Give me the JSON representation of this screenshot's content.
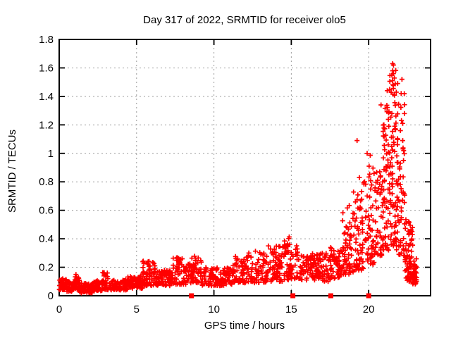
{
  "chart_data": {
    "type": "scatter",
    "title": "Day 317 of 2022, SRMTID for receiver olo5",
    "xlabel": "GPS time / hours",
    "ylabel": "SRMTID / TECUs",
    "xlim": [
      0,
      24
    ],
    "ylim": [
      0,
      1.8
    ],
    "xticks": [
      0,
      5,
      10,
      15,
      20
    ],
    "xtick_labels": [
      "0",
      "5",
      "10",
      "15",
      "20"
    ],
    "yticks": [
      0,
      0.2,
      0.4,
      0.6,
      0.8,
      1,
      1.2,
      1.4,
      1.6,
      1.8
    ],
    "ytick_labels": [
      "0",
      "0.2",
      "0.4",
      "0.6",
      "0.8",
      "1",
      "1.2",
      "1.4",
      "1.6",
      "1.8"
    ],
    "grid": {
      "shown": true,
      "style": "dashed",
      "color": "#9a9a9a"
    },
    "legend": "none",
    "marker": "plus",
    "marker_color": "#ff0000",
    "border_color": "#000000",
    "background_color": "#ffffff",
    "band_format": [
      "x_start",
      "x_end",
      "y_min",
      "y_max",
      "n_points",
      "low_bias_exponent"
    ],
    "density_bands": [
      [
        0.0,
        0.5,
        0.04,
        0.12,
        45,
        1.2
      ],
      [
        0.5,
        1.0,
        0.03,
        0.1,
        45,
        1.2
      ],
      [
        1.0,
        1.3,
        0.04,
        0.15,
        30,
        1.3
      ],
      [
        1.3,
        2.2,
        0.02,
        0.09,
        70,
        1.2
      ],
      [
        2.2,
        2.8,
        0.03,
        0.11,
        45,
        1.2
      ],
      [
        2.8,
        3.2,
        0.04,
        0.18,
        35,
        1.4
      ],
      [
        3.2,
        4.4,
        0.04,
        0.11,
        80,
        1.2
      ],
      [
        4.4,
        5.4,
        0.05,
        0.14,
        70,
        1.2
      ],
      [
        5.4,
        6.2,
        0.07,
        0.25,
        60,
        1.5
      ],
      [
        6.2,
        7.2,
        0.07,
        0.18,
        65,
        1.2
      ],
      [
        7.2,
        8.2,
        0.08,
        0.27,
        65,
        1.4
      ],
      [
        8.2,
        9.2,
        0.09,
        0.28,
        65,
        1.3
      ],
      [
        9.2,
        10.2,
        0.07,
        0.2,
        60,
        1.2
      ],
      [
        10.2,
        11.2,
        0.07,
        0.2,
        65,
        1.2
      ],
      [
        11.2,
        12.2,
        0.09,
        0.28,
        65,
        1.3
      ],
      [
        12.2,
        13.5,
        0.09,
        0.32,
        75,
        1.4
      ],
      [
        13.5,
        14.5,
        0.1,
        0.35,
        65,
        1.4
      ],
      [
        14.5,
        15.6,
        0.11,
        0.42,
        70,
        1.5
      ],
      [
        15.6,
        16.6,
        0.11,
        0.3,
        65,
        1.3
      ],
      [
        16.6,
        17.5,
        0.1,
        0.3,
        60,
        1.3
      ],
      [
        17.5,
        18.3,
        0.12,
        0.36,
        55,
        1.3
      ],
      [
        18.3,
        19.0,
        0.15,
        0.66,
        60,
        1.6
      ],
      [
        19.0,
        19.7,
        0.18,
        0.8,
        58,
        1.5
      ],
      [
        19.7,
        20.35,
        0.22,
        1.0,
        55,
        1.6
      ],
      [
        20.35,
        20.9,
        0.28,
        0.9,
        48,
        1.5
      ],
      [
        20.9,
        21.35,
        0.32,
        1.38,
        58,
        1.5
      ],
      [
        21.35,
        21.8,
        0.35,
        1.6,
        78,
        1.4
      ],
      [
        21.8,
        22.35,
        0.28,
        1.5,
        65,
        1.6
      ],
      [
        22.35,
        22.85,
        0.1,
        0.55,
        68,
        1.4
      ],
      [
        22.85,
        23.1,
        0.08,
        0.26,
        40,
        1.3
      ]
    ],
    "outlier_points": [
      [
        19.25,
        1.09
      ],
      [
        19.4,
        0.83
      ],
      [
        19.9,
        1.0
      ],
      [
        20.8,
        1.34
      ],
      [
        21.0,
        1.12
      ],
      [
        21.2,
        1.44
      ],
      [
        21.3,
        1.19
      ],
      [
        21.5,
        1.28
      ],
      [
        21.5,
        1.55
      ],
      [
        21.55,
        1.63
      ],
      [
        21.6,
        1.62
      ],
      [
        21.55,
        1.58
      ],
      [
        21.6,
        1.56
      ],
      [
        22.1,
        1.42
      ],
      [
        22.15,
        1.52
      ],
      [
        22.2,
        1.21
      ],
      [
        22.2,
        1.09
      ],
      [
        22.25,
        0.95
      ]
    ],
    "zero_value_markers_x": [
      8.55,
      15.1,
      17.55,
      20.0
    ]
  }
}
